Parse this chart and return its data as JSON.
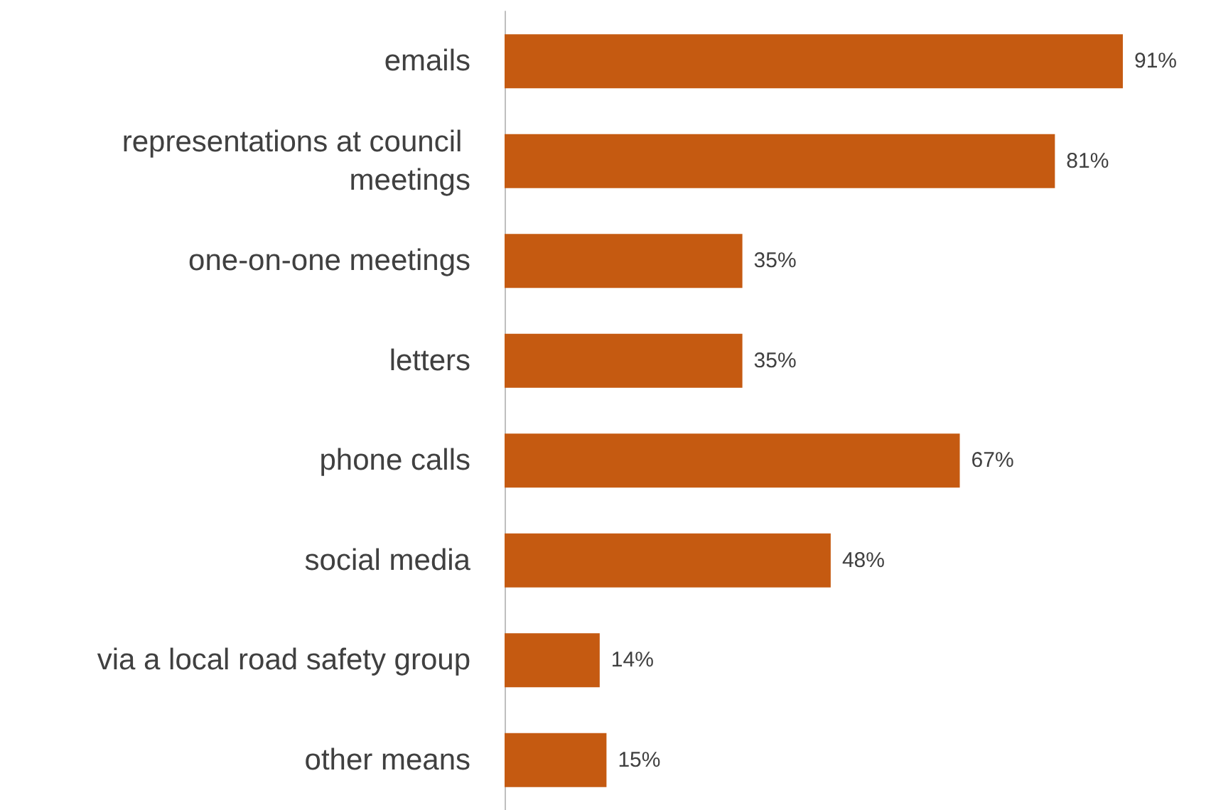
{
  "chart_data": {
    "type": "bar",
    "orientation": "horizontal",
    "tick_labels": "y",
    "categories": [
      "emails",
      "representations at council meetings",
      "one-on-one meetings",
      "letters",
      "phone calls",
      "social media",
      "via a local road safety group",
      "other means"
    ],
    "values": [
      91,
      81,
      35,
      35,
      67,
      48,
      14,
      15
    ],
    "value_labels": [
      "91%",
      "81%",
      "35%",
      "35%",
      "67%",
      "48%",
      "14%",
      "15%"
    ],
    "color": "#c55a11"
  }
}
